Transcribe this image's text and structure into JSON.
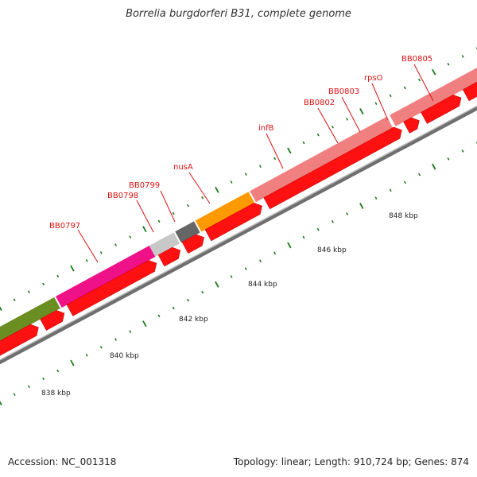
{
  "title": "Borrelia burgdorferi B31, complete genome",
  "footer": {
    "accession": "Accession: NC_001318",
    "summary": "Topology: linear; Length: 910,724 bp; Genes: 874"
  },
  "colors": {
    "label": "#dd1111",
    "cds": "#ff1111",
    "tick": "#1a7a1a",
    "backbone": "#8a8a8a"
  },
  "scale_labels": [
    "838 kbp",
    "840 kbp",
    "842 kbp",
    "844 kbp",
    "846 kbp",
    "848 kbp"
  ],
  "gene_labels": [
    "BB0797",
    "BB0798",
    "BB0799",
    "nusA",
    "infB",
    "BB0802",
    "BB0803",
    "rpsO",
    "BB0805"
  ],
  "color_bands": [
    {
      "color": "#6b8e23"
    },
    {
      "color": "#ee1188"
    },
    {
      "color": "#c8c8c8"
    },
    {
      "color": "#666666"
    },
    {
      "color": "#ff9900"
    },
    {
      "color": "#f08080"
    }
  ]
}
